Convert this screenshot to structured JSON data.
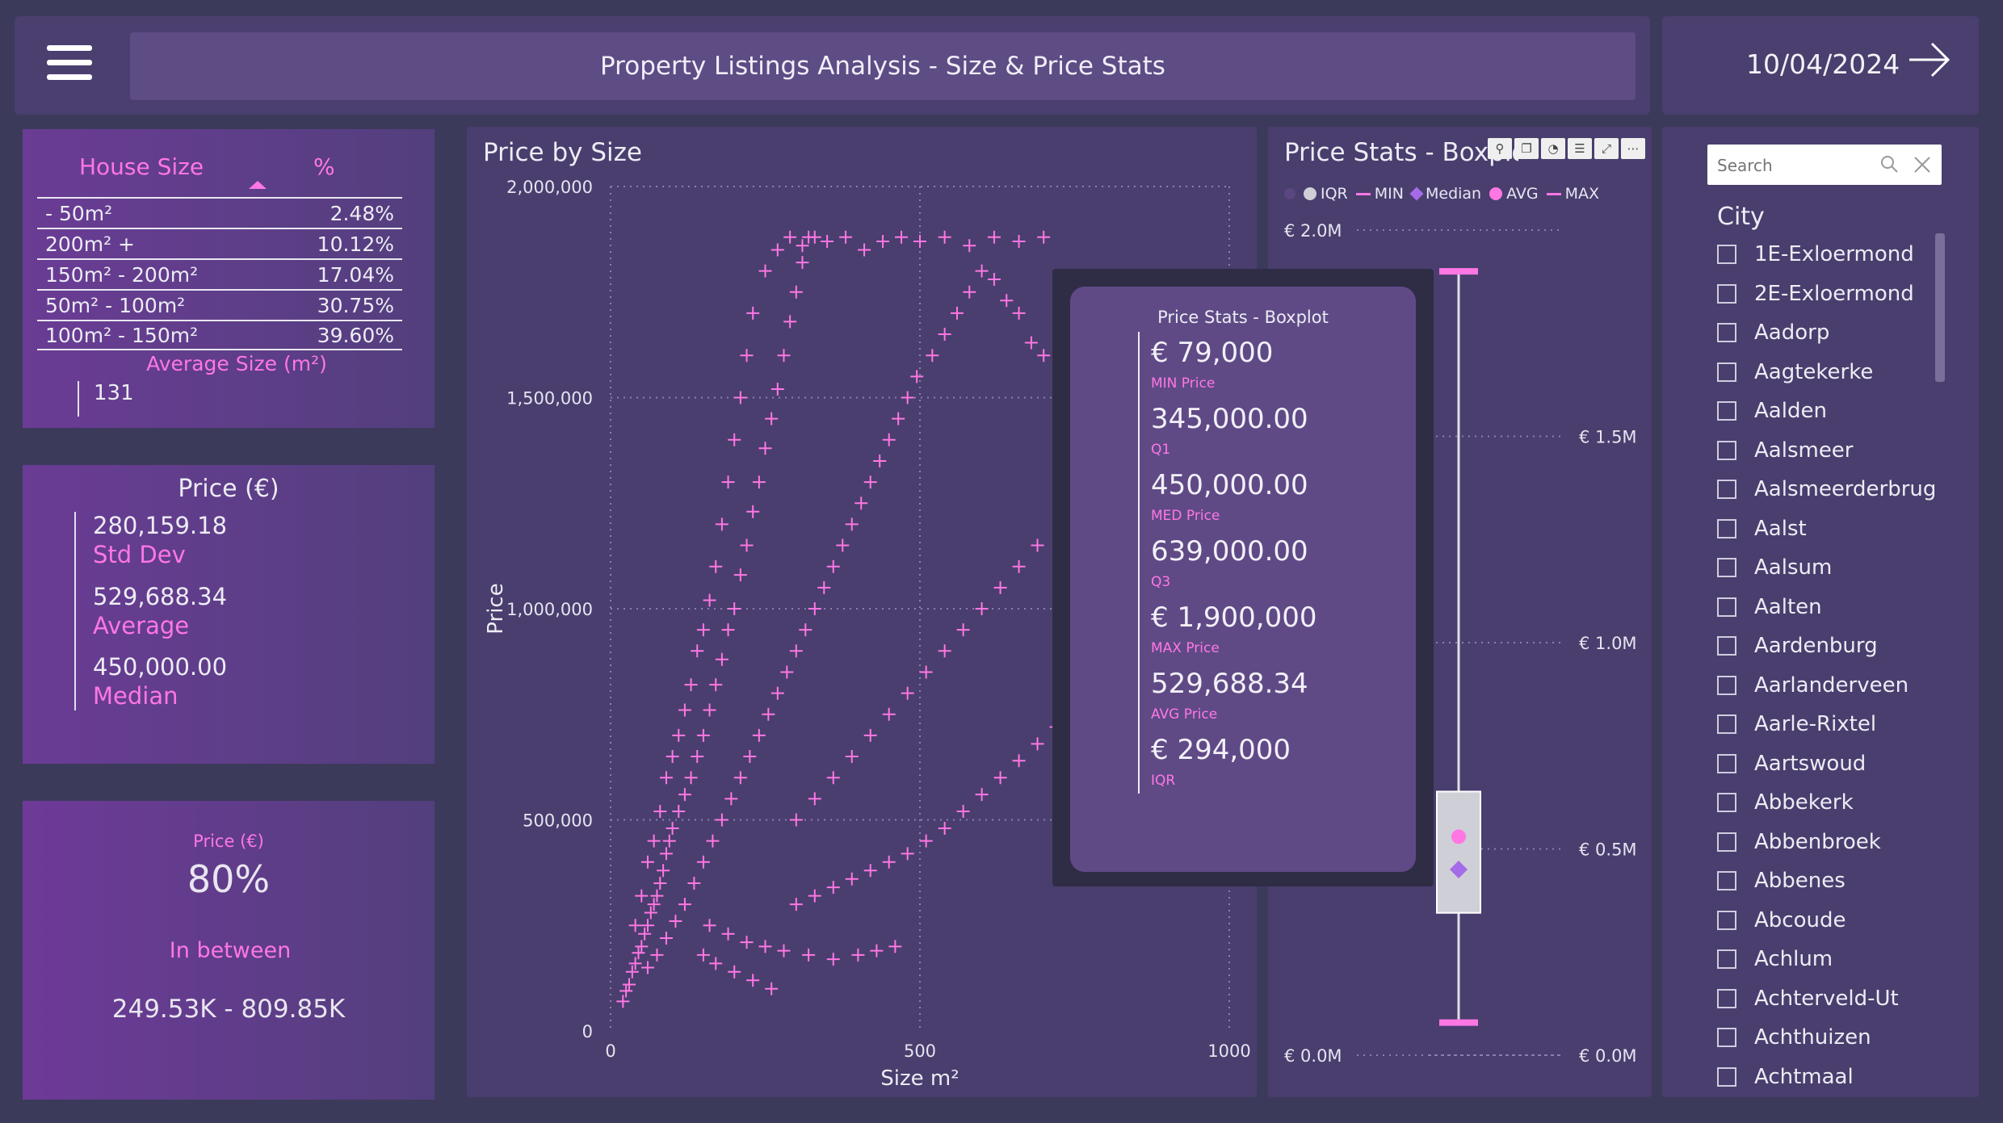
{
  "header": {
    "title": "Property Listings Analysis - Size & Price Stats",
    "date": "10/04/2024"
  },
  "size_table": {
    "col_size": "House Size",
    "col_pct": "%",
    "rows": [
      {
        "label": "- 50m²",
        "pct": "2.48%"
      },
      {
        "label": "200m² +",
        "pct": "10.12%"
      },
      {
        "label": "150m² - 200m²",
        "pct": "17.04%"
      },
      {
        "label": "50m² - 100m²",
        "pct": "30.75%"
      },
      {
        "label": "100m² - 150m²",
        "pct": "39.60%"
      }
    ],
    "avg_label": "Average Size (m²)",
    "avg_value": "131"
  },
  "price_card": {
    "title": "Price (€)",
    "std_value": "280,159.18",
    "std_label": "Std Dev",
    "avg_value": "529,688.34",
    "avg_label": "Average",
    "med_value": "450,000.00",
    "med_label": "Median"
  },
  "range_card": {
    "title": "Price (€)",
    "percent": "80%",
    "label": "In between",
    "range": "249.53K - 809.85K"
  },
  "scatter": {
    "title": "Price by Size",
    "xlabel": "Size m²",
    "ylabel": "Price",
    "x_ticks": [
      "0",
      "500",
      "1000"
    ],
    "y_ticks": [
      "0",
      "500,000",
      "1,000,000",
      "1,500,000",
      "2,000,000"
    ]
  },
  "boxplot": {
    "title": "Price Stats - Boxplot",
    "legend": [
      "IQR",
      "MIN",
      "Median",
      "AVG",
      "MAX"
    ],
    "left_ticks": [
      "€ 2.0M",
      "€ 0.0M"
    ],
    "right_ticks": [
      "€ 1.5M",
      "€ 1.0M",
      "€ 0.5M",
      "€ 0.0M"
    ],
    "colors": {
      "iqr": "#cfcfd8",
      "min": "#ff77e3",
      "median": "#a56be8",
      "avg": "#ff77e3",
      "max": "#ff77e3"
    }
  },
  "tooltip": {
    "title": "Price Stats - Boxplot",
    "items": [
      {
        "value": "€ 79,000",
        "label": "MIN Price"
      },
      {
        "value": "345,000.00",
        "label": "Q1"
      },
      {
        "value": "450,000.00",
        "label": "MED Price"
      },
      {
        "value": "639,000.00",
        "label": "Q3"
      },
      {
        "value": "€ 1,900,000",
        "label": "MAX Price"
      },
      {
        "value": "529,688.34",
        "label": "AVG Price"
      },
      {
        "value": "€ 294,000",
        "label": "IQR"
      }
    ]
  },
  "slicer": {
    "search_placeholder": "Search",
    "title": "City",
    "cities": [
      "1E-Exloermond",
      "2E-Exloermond",
      "Aadorp",
      "Aagtekerke",
      "Aalden",
      "Aalsmeer",
      "Aalsmeerderbrug",
      "Aalst",
      "Aalsum",
      "Aalten",
      "Aardenburg",
      "Aarlanderveen",
      "Aarle-Rixtel",
      "Aartswoud",
      "Abbekerk",
      "Abbenbroek",
      "Abbenes",
      "Abcoude",
      "Achlum",
      "Achterveld-Ut",
      "Achthuizen",
      "Achtmaal"
    ]
  },
  "chart_data": [
    {
      "type": "scatter",
      "title": "Price by Size",
      "xlabel": "Size m²",
      "ylabel": "Price",
      "xlim": [
        0,
        1000
      ],
      "ylim": [
        0,
        2000000
      ],
      "x_ticks": [
        0,
        500,
        1000
      ],
      "y_ticks": [
        0,
        500000,
        1000000,
        1500000,
        2000000
      ],
      "grid": true,
      "series_color": "#ff77e3",
      "points": [
        [
          20,
          70000
        ],
        [
          25,
          95000
        ],
        [
          30,
          110000
        ],
        [
          35,
          140000
        ],
        [
          40,
          160000
        ],
        [
          45,
          185000
        ],
        [
          50,
          200000
        ],
        [
          55,
          230000
        ],
        [
          60,
          250000
        ],
        [
          65,
          280000
        ],
        [
          70,
          300000
        ],
        [
          75,
          320000
        ],
        [
          80,
          350000
        ],
        [
          85,
          380000
        ],
        [
          90,
          420000
        ],
        [
          95,
          450000
        ],
        [
          100,
          480000
        ],
        [
          110,
          520000
        ],
        [
          120,
          560000
        ],
        [
          130,
          600000
        ],
        [
          140,
          650000
        ],
        [
          150,
          700000
        ],
        [
          160,
          760000
        ],
        [
          170,
          820000
        ],
        [
          180,
          880000
        ],
        [
          190,
          950000
        ],
        [
          200,
          1000000
        ],
        [
          210,
          1080000
        ],
        [
          220,
          1150000
        ],
        [
          230,
          1230000
        ],
        [
          240,
          1300000
        ],
        [
          250,
          1380000
        ],
        [
          260,
          1450000
        ],
        [
          270,
          1520000
        ],
        [
          280,
          1600000
        ],
        [
          290,
          1680000
        ],
        [
          300,
          1750000
        ],
        [
          310,
          1820000
        ],
        [
          320,
          1880000
        ],
        [
          330,
          1880000
        ],
        [
          40,
          250000
        ],
        [
          50,
          320000
        ],
        [
          60,
          400000
        ],
        [
          70,
          450000
        ],
        [
          80,
          520000
        ],
        [
          90,
          600000
        ],
        [
          100,
          650000
        ],
        [
          110,
          700000
        ],
        [
          120,
          760000
        ],
        [
          130,
          820000
        ],
        [
          140,
          900000
        ],
        [
          150,
          950000
        ],
        [
          160,
          1020000
        ],
        [
          170,
          1100000
        ],
        [
          180,
          1200000
        ],
        [
          190,
          1300000
        ],
        [
          200,
          1400000
        ],
        [
          210,
          1500000
        ],
        [
          220,
          1600000
        ],
        [
          230,
          1700000
        ],
        [
          250,
          1800000
        ],
        [
          270,
          1850000
        ],
        [
          290,
          1880000
        ],
        [
          310,
          1860000
        ],
        [
          350,
          1870000
        ],
        [
          380,
          1880000
        ],
        [
          410,
          1850000
        ],
        [
          440,
          1870000
        ],
        [
          470,
          1880000
        ],
        [
          500,
          1870000
        ],
        [
          60,
          150000
        ],
        [
          75,
          180000
        ],
        [
          90,
          220000
        ],
        [
          105,
          260000
        ],
        [
          120,
          300000
        ],
        [
          135,
          350000
        ],
        [
          150,
          400000
        ],
        [
          165,
          450000
        ],
        [
          180,
          500000
        ],
        [
          195,
          550000
        ],
        [
          210,
          600000
        ],
        [
          225,
          650000
        ],
        [
          240,
          700000
        ],
        [
          255,
          750000
        ],
        [
          270,
          800000
        ],
        [
          285,
          850000
        ],
        [
          300,
          900000
        ],
        [
          315,
          950000
        ],
        [
          330,
          1000000
        ],
        [
          345,
          1050000
        ],
        [
          360,
          1100000
        ],
        [
          375,
          1150000
        ],
        [
          390,
          1200000
        ],
        [
          405,
          1250000
        ],
        [
          420,
          1300000
        ],
        [
          435,
          1350000
        ],
        [
          450,
          1400000
        ],
        [
          465,
          1450000
        ],
        [
          480,
          1500000
        ],
        [
          495,
          1550000
        ],
        [
          520,
          1600000
        ],
        [
          540,
          1650000
        ],
        [
          560,
          1700000
        ],
        [
          580,
          1750000
        ],
        [
          600,
          1800000
        ],
        [
          620,
          1780000
        ],
        [
          640,
          1730000
        ],
        [
          660,
          1700000
        ],
        [
          680,
          1630000
        ],
        [
          700,
          1600000
        ],
        [
          300,
          500000
        ],
        [
          330,
          550000
        ],
        [
          360,
          600000
        ],
        [
          390,
          650000
        ],
        [
          420,
          700000
        ],
        [
          450,
          750000
        ],
        [
          480,
          800000
        ],
        [
          510,
          850000
        ],
        [
          540,
          900000
        ],
        [
          570,
          950000
        ],
        [
          600,
          1000000
        ],
        [
          630,
          1050000
        ],
        [
          660,
          1100000
        ],
        [
          690,
          1150000
        ],
        [
          300,
          300000
        ],
        [
          330,
          320000
        ],
        [
          360,
          340000
        ],
        [
          390,
          360000
        ],
        [
          420,
          380000
        ],
        [
          450,
          400000
        ],
        [
          480,
          420000
        ],
        [
          510,
          450000
        ],
        [
          540,
          480000
        ],
        [
          570,
          520000
        ],
        [
          600,
          560000
        ],
        [
          630,
          600000
        ],
        [
          660,
          640000
        ],
        [
          690,
          680000
        ],
        [
          720,
          720000
        ],
        [
          750,
          760000
        ],
        [
          780,
          800000
        ],
        [
          810,
          850000
        ],
        [
          830,
          900000
        ],
        [
          840,
          990000
        ],
        [
          820,
          1150000
        ],
        [
          810,
          1300000
        ],
        [
          820,
          1400000
        ],
        [
          830,
          1500000
        ],
        [
          810,
          1600000
        ],
        [
          780,
          1700000
        ],
        [
          160,
          250000
        ],
        [
          190,
          230000
        ],
        [
          220,
          210000
        ],
        [
          250,
          200000
        ],
        [
          280,
          190000
        ],
        [
          320,
          180000
        ],
        [
          360,
          170000
        ],
        [
          400,
          180000
        ],
        [
          430,
          190000
        ],
        [
          460,
          200000
        ],
        [
          260,
          100000
        ],
        [
          230,
          120000
        ],
        [
          200,
          140000
        ],
        [
          170,
          160000
        ],
        [
          150,
          180000
        ],
        [
          700,
          1880000
        ],
        [
          660,
          1870000
        ],
        [
          620,
          1880000
        ],
        [
          580,
          1860000
        ],
        [
          540,
          1880000
        ]
      ]
    },
    {
      "type": "boxplot",
      "title": "Price Stats - Boxplot",
      "ylim": [
        0,
        2000000
      ],
      "min": 79000,
      "q1": 345000,
      "median": 450000,
      "q3": 639000,
      "max": 1900000,
      "avg": 529688.34,
      "iqr": 294000,
      "series": [
        {
          "name": "IQR",
          "values": [
            345000,
            639000
          ]
        },
        {
          "name": "MIN",
          "values": [
            79000
          ]
        },
        {
          "name": "Median",
          "values": [
            450000
          ]
        },
        {
          "name": "AVG",
          "values": [
            529688.34
          ]
        },
        {
          "name": "MAX",
          "values": [
            1900000
          ]
        }
      ]
    }
  ]
}
